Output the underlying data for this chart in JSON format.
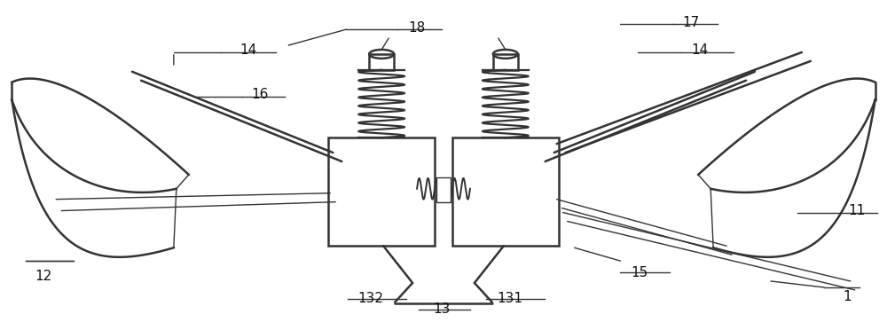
{
  "bg_color": "#ffffff",
  "line_color": "#333333",
  "label_color": "#111111",
  "fig_width": 10.0,
  "fig_height": 3.63,
  "dpi": 100,
  "lw_main": 1.8,
  "lw_thin": 1.0,
  "label_fs": 11
}
